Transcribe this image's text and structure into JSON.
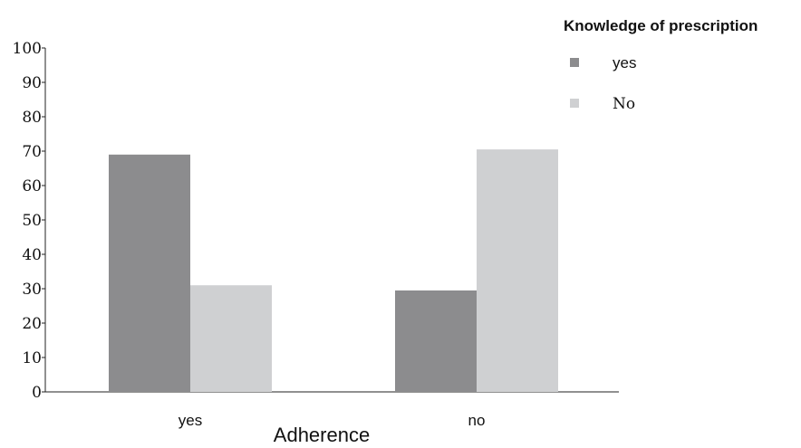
{
  "chart_data": {
    "type": "bar",
    "categories": [
      "yes",
      "no"
    ],
    "xlabel": "Adherence",
    "ylabel": "",
    "ylim": [
      0,
      100
    ],
    "yticks": [
      0,
      10,
      20,
      30,
      40,
      50,
      60,
      70,
      80,
      90,
      100
    ],
    "legend": {
      "title": "Knowledge of prescription",
      "placement": "top-right"
    },
    "series": [
      {
        "name": "yes",
        "color": "#8c8c8e",
        "values": [
          69,
          29.5
        ]
      },
      {
        "name": "No",
        "color": "#cfd0d2",
        "values": [
          31,
          70.5
        ]
      }
    ],
    "grid": false
  }
}
